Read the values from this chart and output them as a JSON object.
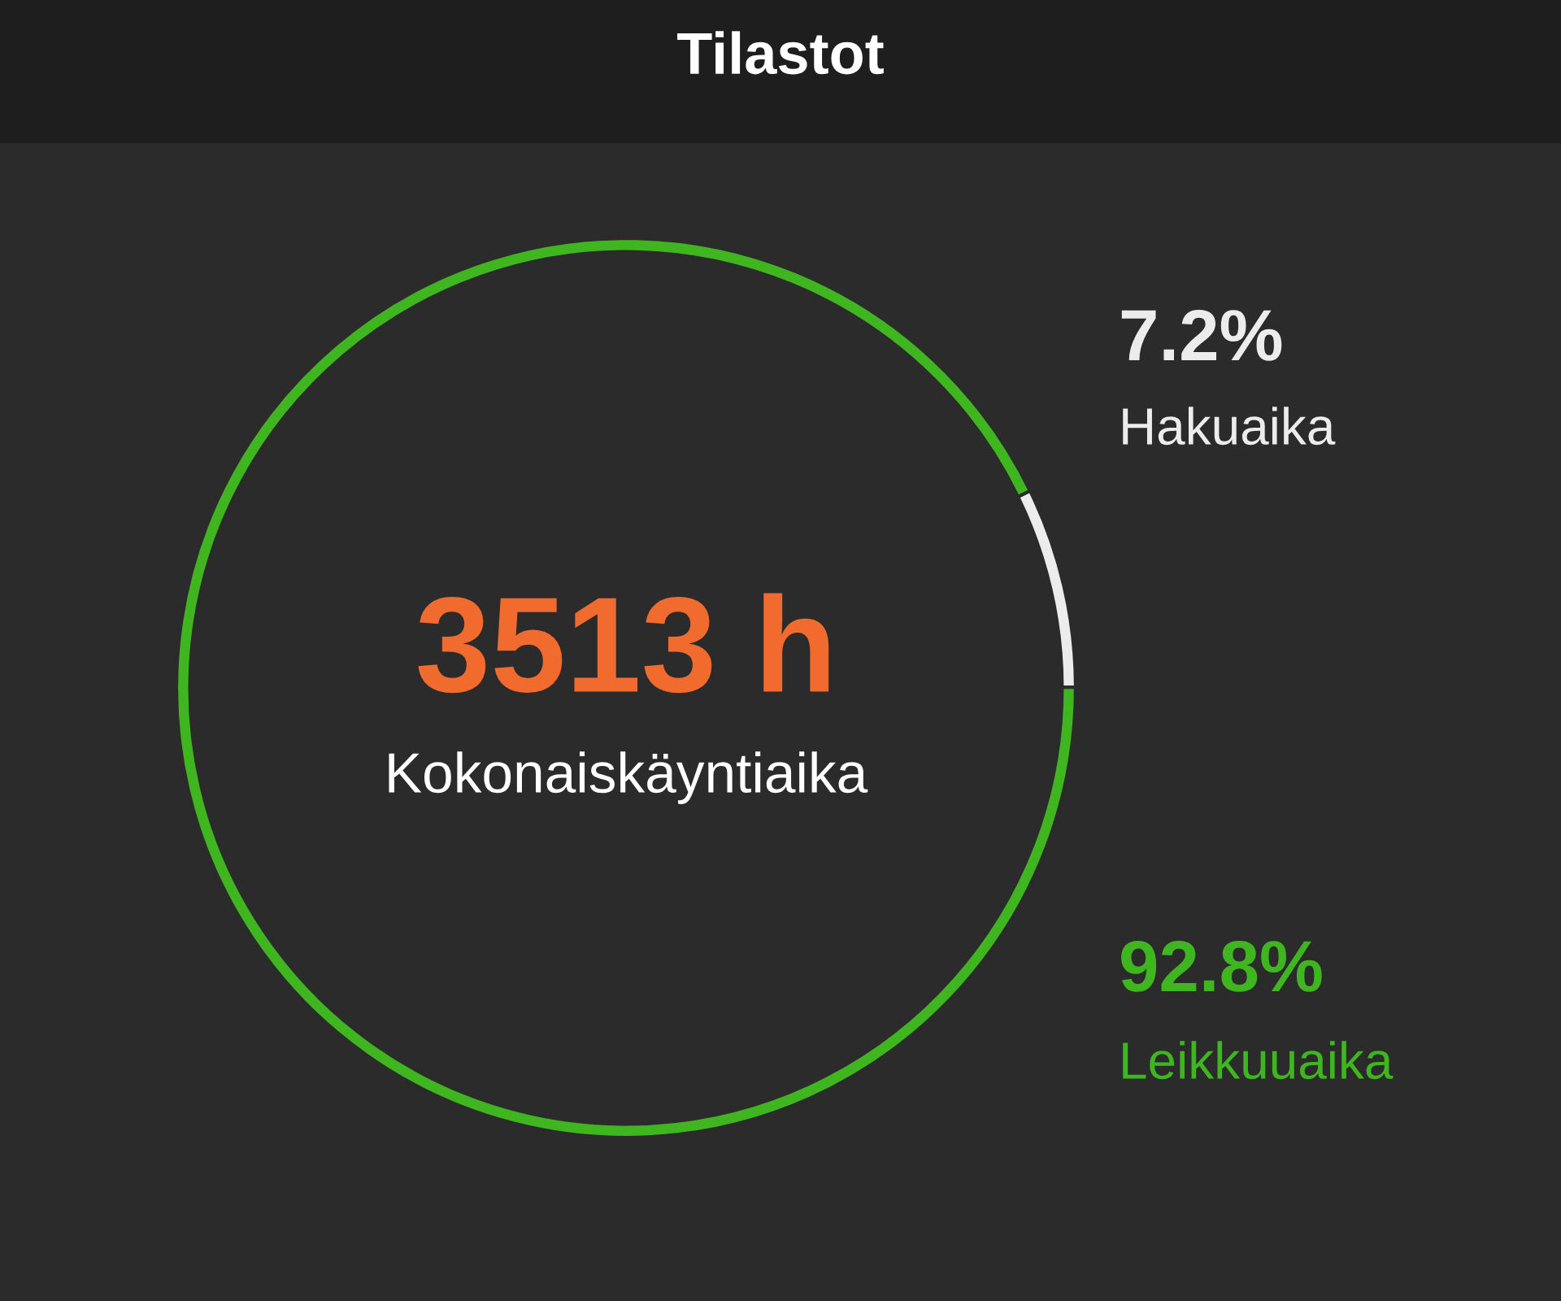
{
  "chart_data": {
    "type": "donut",
    "title": "Tilastot",
    "categories": [
      "Hakuaika",
      "Leikkuuaika"
    ],
    "values": [
      7.2,
      92.8
    ],
    "colors": [
      "#ececec",
      "#3fb51f"
    ],
    "value_labels": [
      "7.2%",
      "92.8%"
    ],
    "annotations": [
      "3513 h",
      "Kokonaiskäyntiaika"
    ]
  }
}
